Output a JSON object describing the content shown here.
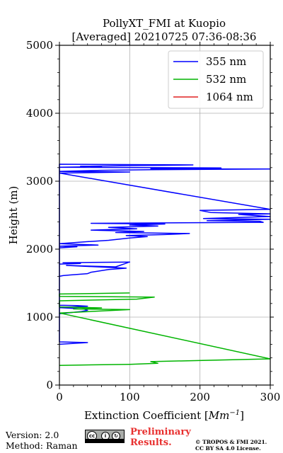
{
  "chart_data": {
    "type": "line",
    "title_line1": "PollyXT_FMI at Kuopio",
    "title_line2": "[Averaged] 20210725 07:36-08:36",
    "xlabel_prefix": "Extinction Coefficient [",
    "xlabel_unit": "Mm",
    "xlabel_exp": "−1",
    "xlabel_suffix": "]",
    "ylabel": "Height (m)",
    "xlim": [
      0,
      300
    ],
    "ylim": [
      0,
      5000
    ],
    "x_ticks": [
      "0",
      "100",
      "200",
      "300"
    ],
    "y_ticks": [
      "0",
      "1000",
      "2000",
      "3000",
      "4000",
      "5000"
    ],
    "grid": true,
    "legend_position": "top-right",
    "series": [
      {
        "name": "355 nm",
        "color": "#0000ff",
        "points": [
          [
            0,
            600
          ],
          [
            40,
            625
          ],
          [
            0,
            635
          ],
          [
            0,
            2020
          ],
          [
            25,
            2035
          ],
          [
            0,
            2045
          ],
          [
            55,
            2060
          ],
          [
            0,
            2080
          ],
          [
            40,
            2110
          ],
          [
            70,
            2130
          ],
          [
            100,
            2165
          ],
          [
            125,
            2185
          ],
          [
            95,
            2200
          ],
          [
            150,
            2215
          ],
          [
            185,
            2230
          ],
          [
            80,
            2245
          ],
          [
            120,
            2260
          ],
          [
            45,
            2280
          ],
          [
            110,
            2300
          ],
          [
            70,
            2320
          ],
          [
            140,
            2340
          ],
          [
            100,
            2355
          ],
          [
            150,
            2370
          ],
          [
            45,
            2380
          ],
          [
            290,
            2395
          ],
          [
            285,
            2410
          ],
          [
            210,
            2420
          ],
          [
            300,
            2440
          ],
          [
            205,
            2450
          ],
          [
            300,
            2480
          ],
          [
            255,
            2510
          ],
          [
            300,
            2520
          ],
          [
            215,
            2540
          ],
          [
            200,
            2570
          ],
          [
            300,
            2585
          ],
          [
            0,
            3120
          ],
          [
            100,
            3135
          ],
          [
            0,
            3145
          ],
          [
            60,
            3160
          ],
          [
            130,
            3170
          ],
          [
            300,
            3180
          ],
          [
            130,
            3185
          ],
          [
            230,
            3195
          ],
          [
            0,
            3205
          ],
          [
            60,
            3215
          ],
          [
            30,
            3220
          ],
          [
            190,
            3240
          ],
          [
            0,
            3250
          ],
          [
            0,
            1780
          ],
          [
            30,
            1790
          ],
          [
            5,
            1800
          ],
          [
            100,
            1810
          ],
          [
            80,
            1740
          ],
          [
            10,
            1760
          ],
          [
            95,
            1720
          ],
          [
            70,
            1700
          ],
          [
            45,
            1660
          ],
          [
            40,
            1640
          ],
          [
            15,
            1620
          ],
          [
            5,
            1610
          ],
          [
            0,
            1600
          ],
          [
            0,
            1050
          ],
          [
            30,
            1080
          ],
          [
            40,
            1100
          ],
          [
            35,
            1120
          ],
          [
            0,
            1140
          ],
          [
            40,
            1160
          ],
          [
            25,
            1170
          ],
          [
            0,
            1175
          ]
        ]
      },
      {
        "name": "532 nm",
        "color": "#00b400",
        "points": [
          [
            0,
            290
          ],
          [
            100,
            305
          ],
          [
            140,
            320
          ],
          [
            130,
            345
          ],
          [
            300,
            385
          ],
          [
            0,
            1060
          ],
          [
            100,
            1110
          ],
          [
            20,
            1120
          ],
          [
            60,
            1135
          ],
          [
            0,
            1150
          ],
          [
            0,
            1240
          ],
          [
            110,
            1265
          ],
          [
            135,
            1295
          ],
          [
            0,
            1305
          ],
          [
            0,
            1340
          ],
          [
            100,
            1355
          ]
        ]
      },
      {
        "name": "1064 nm",
        "color": "#e02020",
        "points": []
      }
    ]
  },
  "footer": {
    "version": "Version: 2.0",
    "method": "Method: Raman",
    "preliminary_1": "Preliminary",
    "preliminary_2": "Results.",
    "copyright_1": "© TROPOS & FMI 2021.",
    "copyright_2": "CC BY SA 4.0 License.",
    "cc_icons": [
      "cc-icon",
      "by-icon",
      "sa-icon"
    ]
  }
}
